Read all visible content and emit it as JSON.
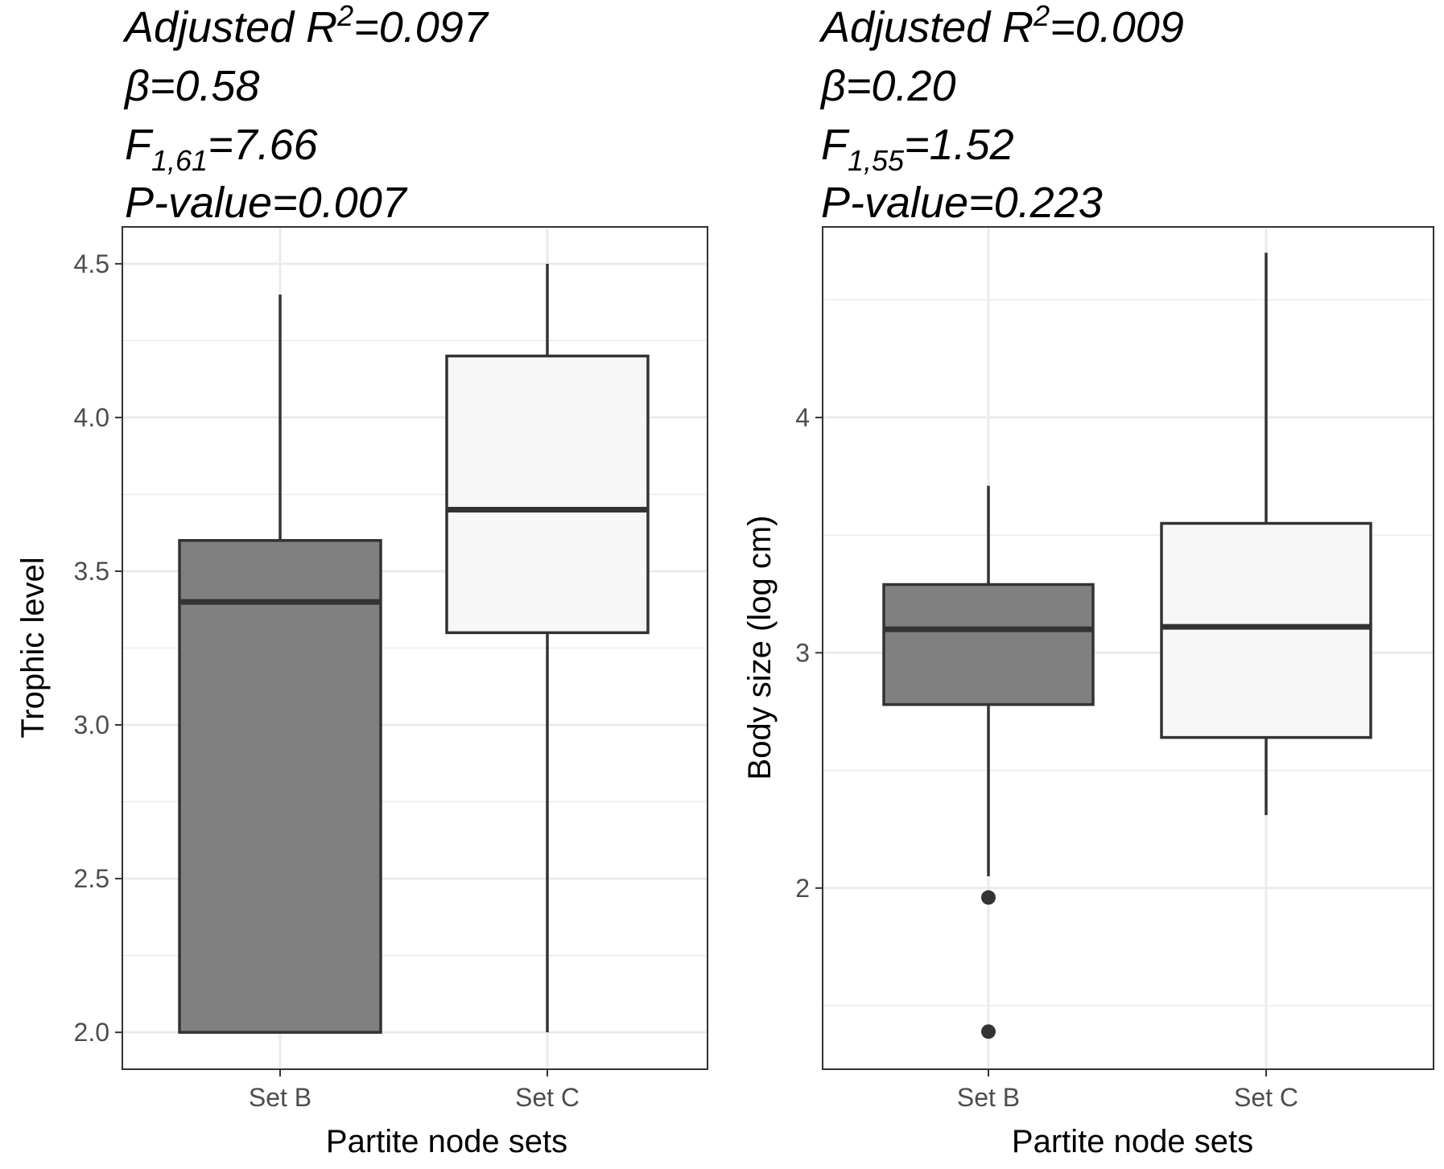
{
  "chart_data": [
    {
      "type": "box",
      "annotations": {
        "r2_prefix": "Adjusted R",
        "r2_sup": "2",
        "r2_value": "=0.097",
        "beta": "β=0.58",
        "f_prefix": "F",
        "f_sub": "1,61",
        "f_value": "=7.66",
        "pvalue": "P-value=0.007"
      },
      "xlabel": "Partite node sets",
      "ylabel": "Trophic level",
      "categories": [
        "Set B",
        "Set C"
      ],
      "ylim": [
        1.88,
        4.62
      ],
      "yticks": [
        2.0,
        2.5,
        3.0,
        3.5,
        4.0,
        4.5
      ],
      "ytick_labels": [
        "2.0",
        "2.5",
        "3.0",
        "3.5",
        "4.0",
        "4.5"
      ],
      "minor_gridlines": [
        2.25,
        2.75,
        3.25,
        3.75,
        4.25
      ],
      "grid": true,
      "boxes": [
        {
          "category": "Set B",
          "fill": "#808080",
          "whisker_low": 2.0,
          "q1": 2.0,
          "median": 3.4,
          "q3": 3.6,
          "whisker_high": 4.4,
          "outliers": []
        },
        {
          "category": "Set C",
          "fill": "#f7f7f7",
          "whisker_low": 2.0,
          "q1": 3.3,
          "median": 3.7,
          "q3": 4.2,
          "whisker_high": 4.5,
          "outliers": []
        }
      ]
    },
    {
      "type": "box",
      "annotations": {
        "r2_prefix": "Adjusted R",
        "r2_sup": "2",
        "r2_value": "=0.009",
        "beta": "β=0.20",
        "f_prefix": "F",
        "f_sub": "1,55",
        "f_value": "=1.52",
        "pvalue": "P-value=0.223"
      },
      "xlabel": "Partite node sets",
      "ylabel": "Body size (log cm)",
      "categories": [
        "Set B",
        "Set C"
      ],
      "ylim": [
        1.23,
        4.81
      ],
      "yticks": [
        2,
        3,
        4
      ],
      "ytick_labels": [
        "2",
        "3",
        "4"
      ],
      "minor_gridlines": [
        1.5,
        2.5,
        3.5,
        4.5
      ],
      "grid": true,
      "boxes": [
        {
          "category": "Set B",
          "fill": "#808080",
          "whisker_low": 2.05,
          "q1": 2.78,
          "median": 3.1,
          "q3": 3.29,
          "whisker_high": 3.71,
          "outliers": [
            1.96,
            1.39
          ]
        },
        {
          "category": "Set C",
          "fill": "#f7f7f7",
          "whisker_low": 2.31,
          "q1": 2.64,
          "median": 3.11,
          "q3": 3.55,
          "whisker_high": 4.7,
          "outliers": []
        }
      ]
    }
  ]
}
